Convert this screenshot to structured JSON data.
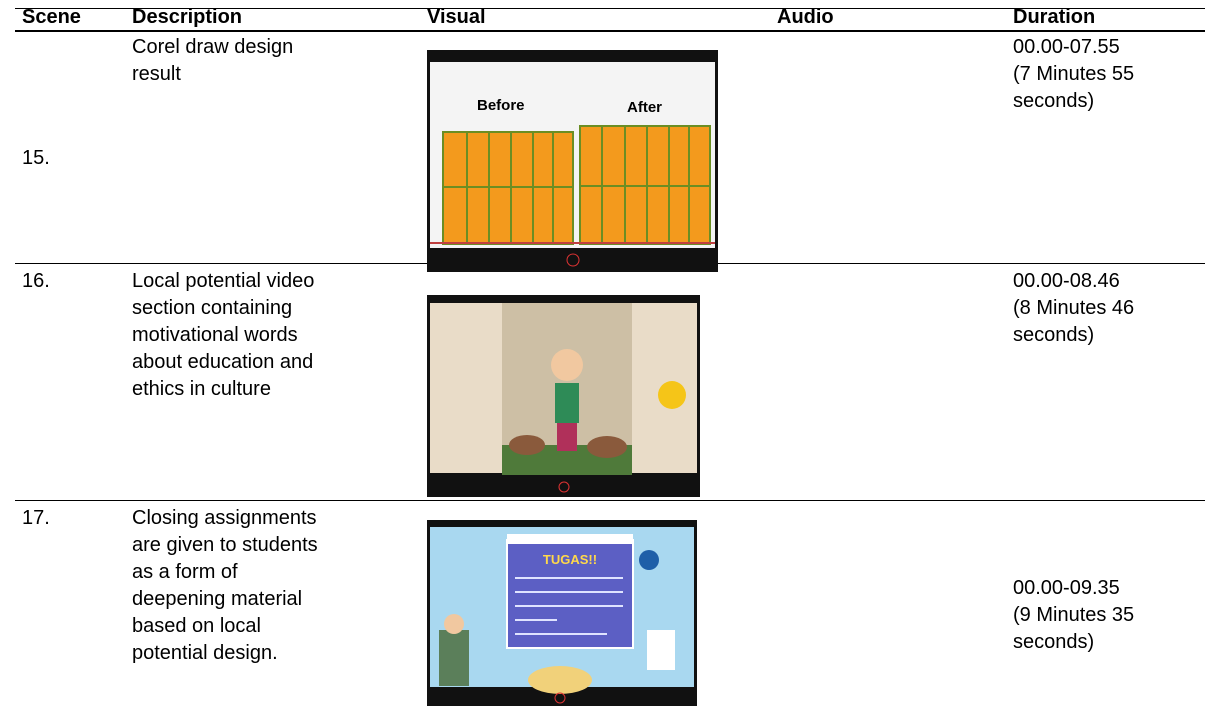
{
  "header": {
    "scene": "Scene",
    "description": "Description",
    "visual": "Visual",
    "audio": "Audio",
    "duration": "Duration"
  },
  "rows": [
    {
      "scene": "15.",
      "description": [
        "Corel draw design",
        "result"
      ],
      "visual": {
        "labels": [
          "Before",
          "After"
        ]
      },
      "duration": [
        "00.00-07.55",
        "(7 Minutes  55",
        "seconds)"
      ]
    },
    {
      "scene": "16.",
      "description": [
        "Local potential video",
        "section containing",
        "motivational words",
        "about education and",
        "ethics in culture"
      ],
      "duration": [
        "00.00-08.46",
        "(8 Minutes  46",
        "seconds)"
      ]
    },
    {
      "scene": "17.",
      "description": [
        "Closing assignments",
        "are given to students",
        "as a form of",
        "deepening material",
        "based on local",
        "potential design."
      ],
      "visual": {
        "labels": [
          "TUGAS!!"
        ]
      },
      "duration": [
        "00.00-09.35",
        "(9 Minutes  35",
        "seconds)"
      ]
    }
  ]
}
